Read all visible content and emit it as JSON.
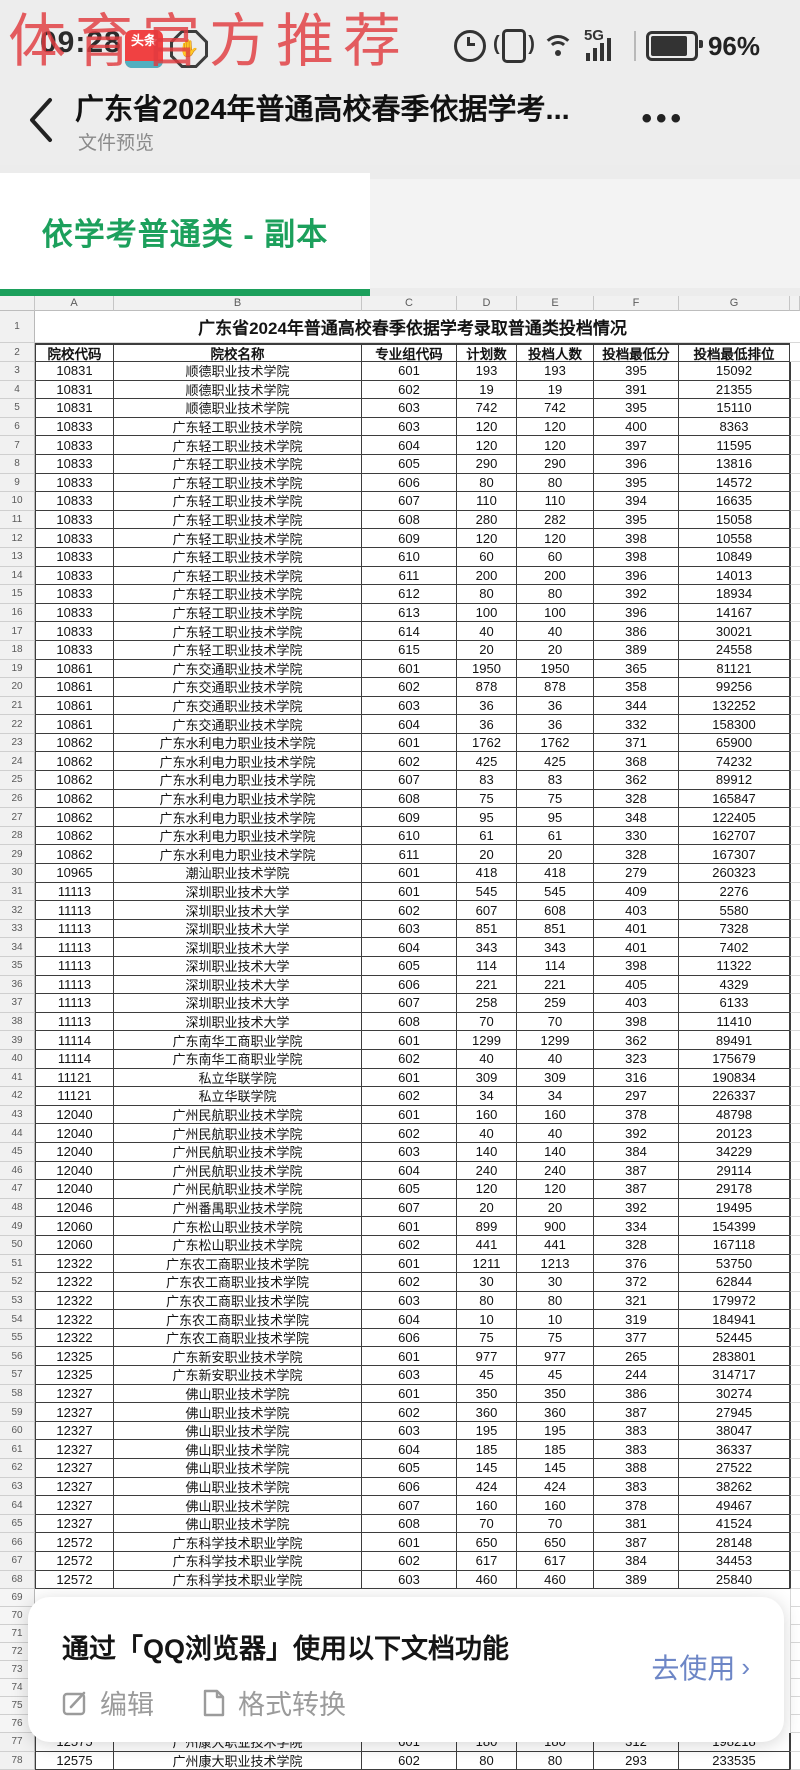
{
  "watermark": "体育官方推荐",
  "status_bar": {
    "time": "09:28",
    "toutiao_label": "头条",
    "hand_icon_glyph": "✋",
    "network": "5G",
    "battery": "96%"
  },
  "nav": {
    "title": "广东省2024年普通高校春季依据学考...",
    "subtitle": "文件预览",
    "menu": "•••",
    "back_glyph": "‹"
  },
  "sheet_tab": {
    "label": "依学考普通类 - 副本"
  },
  "table": {
    "column_letters": [
      "A",
      "B",
      "C",
      "D",
      "E",
      "F",
      "G"
    ],
    "title_row": {
      "n": "1",
      "text": "广东省2024年普通高校春季依据学考录取普通类投档情况"
    },
    "header_row": {
      "n": "2",
      "cells": [
        "院校代码",
        "院校名称",
        "专业组代码",
        "计划数",
        "投档人数",
        "投档最低分",
        "投档最低排位"
      ]
    },
    "rows": [
      [
        3,
        "10831",
        "顺德职业技术学院",
        "601",
        "193",
        "193",
        "395",
        "15092"
      ],
      [
        4,
        "10831",
        "顺德职业技术学院",
        "602",
        "19",
        "19",
        "391",
        "21355"
      ],
      [
        5,
        "10831",
        "顺德职业技术学院",
        "603",
        "742",
        "742",
        "395",
        "15110"
      ],
      [
        6,
        "10833",
        "广东轻工职业技术学院",
        "603",
        "120",
        "120",
        "400",
        "8363"
      ],
      [
        7,
        "10833",
        "广东轻工职业技术学院",
        "604",
        "120",
        "120",
        "397",
        "11595"
      ],
      [
        8,
        "10833",
        "广东轻工职业技术学院",
        "605",
        "290",
        "290",
        "396",
        "13816"
      ],
      [
        9,
        "10833",
        "广东轻工职业技术学院",
        "606",
        "80",
        "80",
        "395",
        "14572"
      ],
      [
        10,
        "10833",
        "广东轻工职业技术学院",
        "607",
        "110",
        "110",
        "394",
        "16635"
      ],
      [
        11,
        "10833",
        "广东轻工职业技术学院",
        "608",
        "280",
        "282",
        "395",
        "15058"
      ],
      [
        12,
        "10833",
        "广东轻工职业技术学院",
        "609",
        "120",
        "120",
        "398",
        "10558"
      ],
      [
        13,
        "10833",
        "广东轻工职业技术学院",
        "610",
        "60",
        "60",
        "398",
        "10849"
      ],
      [
        14,
        "10833",
        "广东轻工职业技术学院",
        "611",
        "200",
        "200",
        "396",
        "14013"
      ],
      [
        15,
        "10833",
        "广东轻工职业技术学院",
        "612",
        "80",
        "80",
        "392",
        "18934"
      ],
      [
        16,
        "10833",
        "广东轻工职业技术学院",
        "613",
        "100",
        "100",
        "396",
        "14167"
      ],
      [
        17,
        "10833",
        "广东轻工职业技术学院",
        "614",
        "40",
        "40",
        "386",
        "30021"
      ],
      [
        18,
        "10833",
        "广东轻工职业技术学院",
        "615",
        "20",
        "20",
        "389",
        "24558"
      ],
      [
        19,
        "10861",
        "广东交通职业技术学院",
        "601",
        "1950",
        "1950",
        "365",
        "81121"
      ],
      [
        20,
        "10861",
        "广东交通职业技术学院",
        "602",
        "878",
        "878",
        "358",
        "99256"
      ],
      [
        21,
        "10861",
        "广东交通职业技术学院",
        "603",
        "36",
        "36",
        "344",
        "132252"
      ],
      [
        22,
        "10861",
        "广东交通职业技术学院",
        "604",
        "36",
        "36",
        "332",
        "158300"
      ],
      [
        23,
        "10862",
        "广东水利电力职业技术学院",
        "601",
        "1762",
        "1762",
        "371",
        "65900"
      ],
      [
        24,
        "10862",
        "广东水利电力职业技术学院",
        "602",
        "425",
        "425",
        "368",
        "74232"
      ],
      [
        25,
        "10862",
        "广东水利电力职业技术学院",
        "607",
        "83",
        "83",
        "362",
        "89912"
      ],
      [
        26,
        "10862",
        "广东水利电力职业技术学院",
        "608",
        "75",
        "75",
        "328",
        "165847"
      ],
      [
        27,
        "10862",
        "广东水利电力职业技术学院",
        "609",
        "95",
        "95",
        "348",
        "122405"
      ],
      [
        28,
        "10862",
        "广东水利电力职业技术学院",
        "610",
        "61",
        "61",
        "330",
        "162707"
      ],
      [
        29,
        "10862",
        "广东水利电力职业技术学院",
        "611",
        "20",
        "20",
        "328",
        "167307"
      ],
      [
        30,
        "10965",
        "潮汕职业技术学院",
        "601",
        "418",
        "418",
        "279",
        "260323"
      ],
      [
        31,
        "11113",
        "深圳职业技术大学",
        "601",
        "545",
        "545",
        "409",
        "2276"
      ],
      [
        32,
        "11113",
        "深圳职业技术大学",
        "602",
        "607",
        "608",
        "403",
        "5580"
      ],
      [
        33,
        "11113",
        "深圳职业技术大学",
        "603",
        "851",
        "851",
        "401",
        "7328"
      ],
      [
        34,
        "11113",
        "深圳职业技术大学",
        "604",
        "343",
        "343",
        "401",
        "7402"
      ],
      [
        35,
        "11113",
        "深圳职业技术大学",
        "605",
        "114",
        "114",
        "398",
        "11322"
      ],
      [
        36,
        "11113",
        "深圳职业技术大学",
        "606",
        "221",
        "221",
        "405",
        "4329"
      ],
      [
        37,
        "11113",
        "深圳职业技术大学",
        "607",
        "258",
        "259",
        "403",
        "6133"
      ],
      [
        38,
        "11113",
        "深圳职业技术大学",
        "608",
        "70",
        "70",
        "398",
        "11410"
      ],
      [
        39,
        "11114",
        "广东南华工商职业学院",
        "601",
        "1299",
        "1299",
        "362",
        "89491"
      ],
      [
        40,
        "11114",
        "广东南华工商职业学院",
        "602",
        "40",
        "40",
        "323",
        "175679"
      ],
      [
        41,
        "11121",
        "私立华联学院",
        "601",
        "309",
        "309",
        "316",
        "190834"
      ],
      [
        42,
        "11121",
        "私立华联学院",
        "602",
        "34",
        "34",
        "297",
        "226337"
      ],
      [
        43,
        "12040",
        "广州民航职业技术学院",
        "601",
        "160",
        "160",
        "378",
        "48798"
      ],
      [
        44,
        "12040",
        "广州民航职业技术学院",
        "602",
        "40",
        "40",
        "392",
        "20123"
      ],
      [
        45,
        "12040",
        "广州民航职业技术学院",
        "603",
        "140",
        "140",
        "384",
        "34229"
      ],
      [
        46,
        "12040",
        "广州民航职业技术学院",
        "604",
        "240",
        "240",
        "387",
        "29114"
      ],
      [
        47,
        "12040",
        "广州民航职业技术学院",
        "605",
        "120",
        "120",
        "387",
        "29178"
      ],
      [
        48,
        "12046",
        "广州番禺职业技术学院",
        "607",
        "20",
        "20",
        "392",
        "19495"
      ],
      [
        49,
        "12060",
        "广东松山职业技术学院",
        "601",
        "899",
        "900",
        "334",
        "154399"
      ],
      [
        50,
        "12060",
        "广东松山职业技术学院",
        "602",
        "441",
        "441",
        "328",
        "167118"
      ],
      [
        51,
        "12322",
        "广东农工商职业技术学院",
        "601",
        "1211",
        "1213",
        "376",
        "53750"
      ],
      [
        52,
        "12322",
        "广东农工商职业技术学院",
        "602",
        "30",
        "30",
        "372",
        "62844"
      ],
      [
        53,
        "12322",
        "广东农工商职业技术学院",
        "603",
        "80",
        "80",
        "321",
        "179972"
      ],
      [
        54,
        "12322",
        "广东农工商职业技术学院",
        "604",
        "10",
        "10",
        "319",
        "184941"
      ],
      [
        55,
        "12322",
        "广东农工商职业技术学院",
        "606",
        "75",
        "75",
        "377",
        "52445"
      ],
      [
        56,
        "12325",
        "广东新安职业技术学院",
        "601",
        "977",
        "977",
        "265",
        "283801"
      ],
      [
        57,
        "12325",
        "广东新安职业技术学院",
        "603",
        "45",
        "45",
        "244",
        "314717"
      ],
      [
        58,
        "12327",
        "佛山职业技术学院",
        "601",
        "350",
        "350",
        "386",
        "30274"
      ],
      [
        59,
        "12327",
        "佛山职业技术学院",
        "602",
        "360",
        "360",
        "387",
        "27945"
      ],
      [
        60,
        "12327",
        "佛山职业技术学院",
        "603",
        "195",
        "195",
        "383",
        "38047"
      ],
      [
        61,
        "12327",
        "佛山职业技术学院",
        "604",
        "185",
        "185",
        "383",
        "36337"
      ],
      [
        62,
        "12327",
        "佛山职业技术学院",
        "605",
        "145",
        "145",
        "388",
        "27522"
      ],
      [
        63,
        "12327",
        "佛山职业技术学院",
        "606",
        "424",
        "424",
        "383",
        "38262"
      ],
      [
        64,
        "12327",
        "佛山职业技术学院",
        "607",
        "160",
        "160",
        "378",
        "49467"
      ],
      [
        65,
        "12327",
        "佛山职业技术学院",
        "608",
        "70",
        "70",
        "381",
        "41524"
      ],
      [
        66,
        "12572",
        "广东科学技术职业学院",
        "601",
        "650",
        "650",
        "387",
        "28148"
      ],
      [
        67,
        "12572",
        "广东科学技术职业学院",
        "602",
        "617",
        "617",
        "384",
        "34453"
      ],
      [
        68,
        "12572",
        "广东科学技术职业学院",
        "603",
        "460",
        "460",
        "389",
        "25840"
      ]
    ],
    "empty_row_numbers": [
      69,
      70,
      71,
      72,
      73,
      74,
      75,
      76
    ],
    "bottom_rows": [
      [
        77,
        "12575",
        "广州康大职业技术学院",
        "601",
        "180",
        "180",
        "312",
        "198218"
      ],
      [
        78,
        "12575",
        "广州康大职业技术学院",
        "602",
        "80",
        "80",
        "293",
        "233535"
      ]
    ]
  },
  "banner": {
    "title": "通过「QQ浏览器」使用以下文档功能",
    "action": "去使用",
    "action_chevron": "›",
    "buttons": [
      "编辑",
      "格式转换"
    ]
  }
}
